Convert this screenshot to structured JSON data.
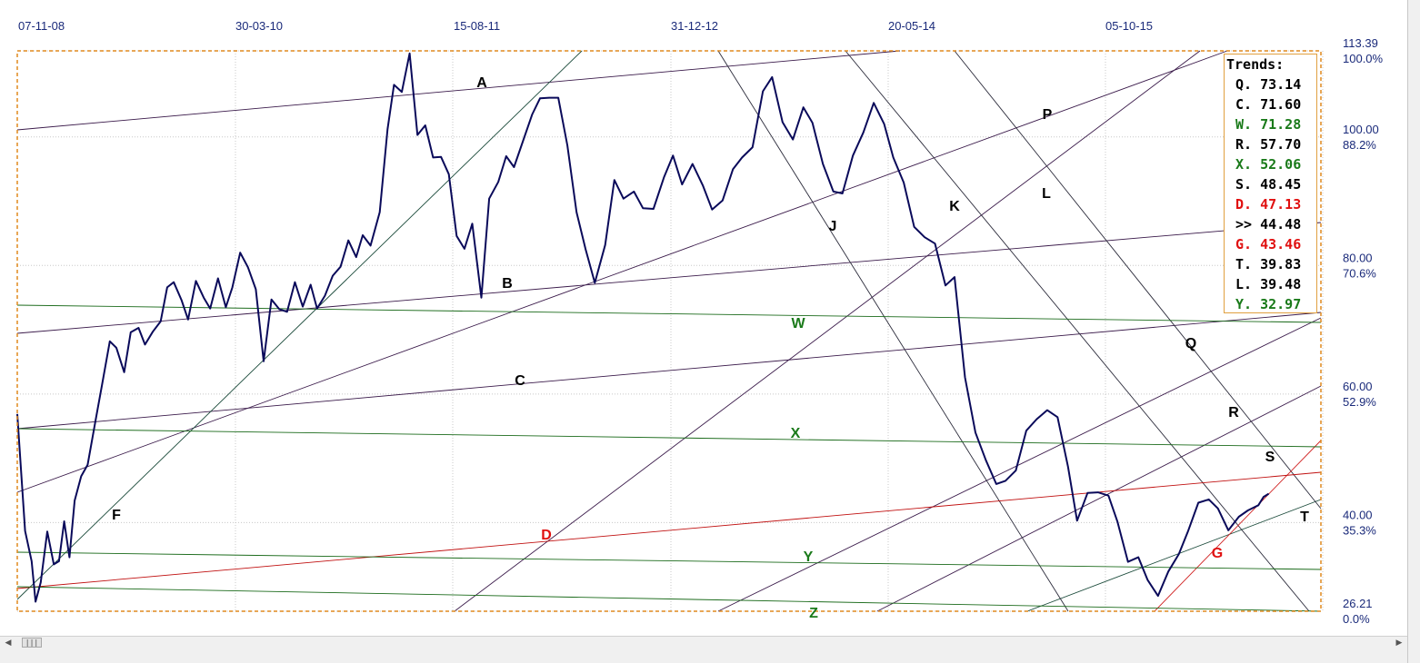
{
  "chart_data": {
    "type": "line",
    "x_ticks": [
      "07-11-08",
      "30-03-10",
      "15-08-11",
      "31-12-12",
      "20-05-14",
      "05-10-15"
    ],
    "y_ticks": [
      {
        "value": "113.39",
        "pct": "100.0%"
      },
      {
        "value": "100.00",
        "pct": "88.2%"
      },
      {
        "value": "80.00",
        "pct": "70.6%"
      },
      {
        "value": "60.00",
        "pct": "52.9%"
      },
      {
        "value": "40.00",
        "pct": "35.3%"
      },
      {
        "value": "26.21",
        "pct": "0.0%"
      }
    ],
    "ylim": [
      26.21,
      113.39
    ],
    "grid": true,
    "legend_position": "top-right",
    "legend_title": "Trends:",
    "trends": [
      {
        "label": "Q.",
        "value": "73.14",
        "color": "#000000"
      },
      {
        "label": "C.",
        "value": "71.60",
        "color": "#000000"
      },
      {
        "label": "W.",
        "value": "71.28",
        "color": "#1a7a1a"
      },
      {
        "label": "R.",
        "value": "57.70",
        "color": "#000000"
      },
      {
        "label": "X.",
        "value": "52.06",
        "color": "#1a7a1a"
      },
      {
        "label": "S.",
        "value": "48.45",
        "color": "#000000"
      },
      {
        "label": "D.",
        "value": "47.13",
        "color": "#e01010"
      },
      {
        "label": ">>",
        "value": "44.48",
        "color": "#000000"
      },
      {
        "label": "G.",
        "value": "43.46",
        "color": "#e01010"
      },
      {
        "label": "T.",
        "value": "39.83",
        "color": "#000000"
      },
      {
        "label": "L.",
        "value": "39.48",
        "color": "#000000"
      },
      {
        "label": "Y.",
        "value": "32.97",
        "color": "#1a7a1a"
      }
    ],
    "trend_line_labels": [
      {
        "label": "A",
        "color": "#000000"
      },
      {
        "label": "B",
        "color": "#000000"
      },
      {
        "label": "C",
        "color": "#000000"
      },
      {
        "label": "D",
        "color": "#e01010"
      },
      {
        "label": "F",
        "color": "#000000"
      },
      {
        "label": "G",
        "color": "#e01010"
      },
      {
        "label": "J",
        "color": "#000000"
      },
      {
        "label": "K",
        "color": "#000000"
      },
      {
        "label": "L",
        "color": "#000000"
      },
      {
        "label": "P",
        "color": "#000000"
      },
      {
        "label": "Q",
        "color": "#000000"
      },
      {
        "label": "R",
        "color": "#000000"
      },
      {
        "label": "S",
        "color": "#000000"
      },
      {
        "label": "T",
        "color": "#000000"
      },
      {
        "label": "W",
        "color": "#1a7a1a"
      },
      {
        "label": "X",
        "color": "#1a7a1a"
      },
      {
        "label": "Y",
        "color": "#1a7a1a"
      },
      {
        "label": "Z",
        "color": "#1a7a1a"
      }
    ],
    "series": [
      {
        "color": "#0a0a5a",
        "points": [
          [
            0.0,
            56.9
          ],
          [
            0.6,
            38.7
          ],
          [
            1.1,
            34.0
          ],
          [
            1.4,
            27.7
          ],
          [
            1.8,
            30.7
          ],
          [
            2.3,
            38.6
          ],
          [
            2.8,
            33.5
          ],
          [
            3.2,
            34.0
          ],
          [
            3.6,
            40.2
          ],
          [
            4.0,
            34.6
          ],
          [
            4.4,
            43.4
          ],
          [
            4.9,
            47.2
          ],
          [
            5.4,
            49.0
          ],
          [
            6.0,
            55.8
          ],
          [
            6.5,
            61.4
          ],
          [
            7.1,
            68.2
          ],
          [
            7.6,
            67.2
          ],
          [
            8.2,
            63.4
          ],
          [
            8.7,
            69.6
          ],
          [
            9.3,
            70.3
          ],
          [
            9.8,
            67.7
          ],
          [
            10.4,
            69.7
          ],
          [
            11.0,
            71.3
          ],
          [
            11.5,
            76.6
          ],
          [
            12.0,
            77.4
          ],
          [
            12.6,
            74.6
          ],
          [
            13.1,
            71.6
          ],
          [
            13.7,
            77.6
          ],
          [
            14.3,
            75.0
          ],
          [
            14.8,
            73.3
          ],
          [
            15.4,
            78.0
          ],
          [
            16.0,
            73.5
          ],
          [
            16.5,
            76.6
          ],
          [
            17.1,
            82.0
          ],
          [
            17.7,
            79.7
          ],
          [
            18.3,
            76.3
          ],
          [
            18.9,
            65.1
          ],
          [
            19.5,
            74.7
          ],
          [
            20.1,
            73.2
          ],
          [
            20.7,
            72.8
          ],
          [
            21.3,
            77.4
          ],
          [
            21.9,
            73.6
          ],
          [
            22.5,
            77.0
          ],
          [
            23.0,
            73.3
          ],
          [
            23.6,
            75.3
          ],
          [
            24.2,
            78.4
          ],
          [
            24.8,
            79.8
          ],
          [
            25.4,
            83.9
          ],
          [
            26.0,
            81.3
          ],
          [
            26.5,
            84.7
          ],
          [
            27.1,
            83.1
          ],
          [
            27.8,
            88.3
          ],
          [
            28.4,
            101.2
          ],
          [
            28.9,
            108.1
          ],
          [
            29.5,
            107.0
          ],
          [
            30.1,
            113.0
          ],
          [
            30.7,
            100.3
          ],
          [
            31.3,
            101.8
          ],
          [
            31.9,
            96.8
          ],
          [
            32.5,
            96.9
          ],
          [
            33.1,
            94.2
          ],
          [
            33.7,
            84.6
          ],
          [
            34.3,
            82.6
          ],
          [
            34.9,
            86.5
          ],
          [
            35.6,
            75.0
          ],
          [
            36.2,
            90.4
          ],
          [
            36.9,
            93.0
          ],
          [
            37.5,
            97.0
          ],
          [
            38.1,
            95.3
          ],
          [
            38.8,
            99.4
          ],
          [
            39.5,
            103.5
          ],
          [
            40.1,
            106.0
          ],
          [
            40.8,
            106.1
          ],
          [
            41.5,
            106.1
          ],
          [
            42.2,
            98.7
          ],
          [
            42.9,
            88.3
          ],
          [
            43.6,
            82.5
          ],
          [
            44.3,
            77.3
          ],
          [
            45.1,
            83.2
          ],
          [
            45.8,
            93.3
          ],
          [
            46.5,
            90.4
          ],
          [
            47.3,
            91.5
          ],
          [
            48.0,
            88.9
          ],
          [
            48.8,
            88.8
          ],
          [
            49.6,
            93.7
          ],
          [
            50.3,
            97.1
          ],
          [
            51.0,
            92.6
          ],
          [
            51.8,
            95.8
          ],
          [
            52.6,
            92.4
          ],
          [
            53.3,
            88.7
          ],
          [
            54.1,
            90.1
          ],
          [
            54.9,
            95.0
          ],
          [
            55.6,
            96.8
          ],
          [
            56.4,
            98.4
          ],
          [
            57.2,
            107.1
          ],
          [
            57.9,
            109.3
          ],
          [
            58.7,
            102.3
          ],
          [
            59.5,
            99.6
          ],
          [
            60.3,
            104.6
          ],
          [
            61.0,
            102.2
          ],
          [
            61.8,
            95.8
          ],
          [
            62.6,
            91.5
          ],
          [
            63.3,
            91.2
          ],
          [
            64.1,
            97.1
          ],
          [
            64.9,
            100.7
          ],
          [
            65.7,
            105.3
          ],
          [
            66.5,
            102.0
          ],
          [
            67.2,
            96.8
          ],
          [
            68.0,
            92.9
          ],
          [
            68.8,
            86.0
          ],
          [
            69.6,
            84.4
          ],
          [
            70.4,
            83.4
          ],
          [
            71.2,
            76.9
          ],
          [
            71.9,
            78.2
          ],
          [
            72.7,
            62.6
          ],
          [
            73.5,
            54.0
          ],
          [
            74.3,
            49.7
          ],
          [
            75.1,
            46.0
          ],
          [
            75.8,
            46.5
          ],
          [
            76.6,
            48.1
          ],
          [
            77.4,
            54.3
          ],
          [
            78.2,
            56.1
          ],
          [
            79.0,
            57.5
          ],
          [
            79.8,
            56.4
          ],
          [
            80.6,
            48.7
          ],
          [
            81.3,
            40.3
          ],
          [
            82.1,
            44.6
          ],
          [
            82.9,
            44.7
          ],
          [
            83.7,
            44.2
          ],
          [
            84.4,
            40.1
          ],
          [
            85.2,
            33.9
          ],
          [
            86.0,
            34.6
          ],
          [
            86.7,
            31.1
          ],
          [
            87.5,
            28.6
          ],
          [
            88.3,
            32.4
          ],
          [
            89.1,
            35.1
          ],
          [
            89.8,
            38.6
          ],
          [
            90.6,
            43.1
          ],
          [
            91.4,
            43.6
          ],
          [
            92.1,
            42.2
          ],
          [
            92.9,
            38.8
          ],
          [
            93.7,
            40.9
          ],
          [
            94.4,
            41.9
          ],
          [
            95.2,
            42.7
          ],
          [
            95.6,
            44.0
          ],
          [
            96.0,
            44.5
          ]
        ]
      }
    ]
  },
  "window": {
    "scrollbar_thumb": "|||",
    "scroll_left": "◀",
    "scroll_right": "▶"
  }
}
